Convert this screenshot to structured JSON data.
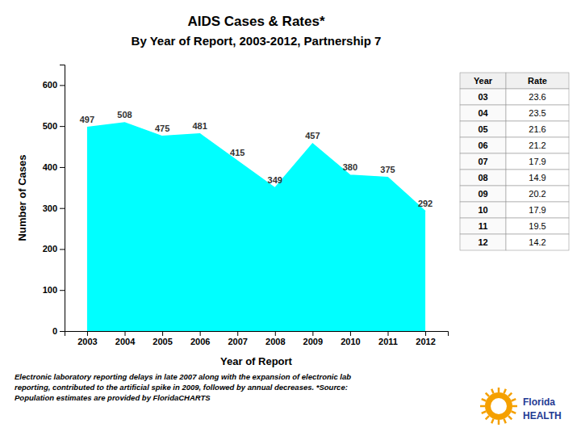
{
  "chart_data": {
    "type": "area",
    "title": "AIDS Cases & Rates*",
    "subtitle": "By Year of Report, 2003-2012, Partnership 7",
    "x": [
      2003,
      2004,
      2005,
      2006,
      2007,
      2008,
      2009,
      2010,
      2011,
      2012
    ],
    "values": [
      497,
      508,
      475,
      481,
      415,
      349,
      457,
      380,
      375,
      292
    ],
    "color": "#00FFFF",
    "xlabel": "Year of Report",
    "ylabel": "Number of Cases",
    "xlim": [
      2002.4,
      2012.6
    ],
    "xticks": [
      2003,
      2004,
      2005,
      2006,
      2007,
      2008,
      2009,
      2010,
      2011,
      2012
    ],
    "ylim": [
      0,
      650
    ],
    "yticks": [
      0,
      100,
      200,
      300,
      400,
      500,
      600
    ],
    "grid": false,
    "data_labels": true,
    "table": {
      "columns": [
        "Year",
        "Rate"
      ],
      "years": [
        "03",
        "04",
        "05",
        "06",
        "07",
        "08",
        "09",
        "10",
        "11",
        "12"
      ],
      "rates": [
        23.6,
        23.5,
        21.6,
        21.2,
        17.9,
        14.9,
        20.2,
        17.9,
        19.5,
        14.2
      ]
    },
    "annotations": [
      "Electronic laboratory reporting delays in late 2007 along with the expansion of electronic lab",
      "reporting, contributed to the artificial spike in 2009, followed by annual decreases. *Source:",
      "Population estimates are provided by FloridaCHARTS"
    ],
    "logo_text": [
      "Florida",
      "HEALTH"
    ]
  }
}
